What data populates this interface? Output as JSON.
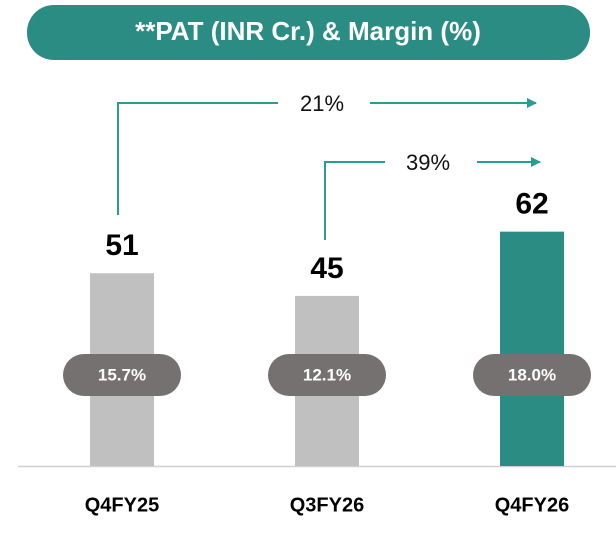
{
  "chart_data": {
    "type": "bar",
    "title": "**PAT (INR Cr.) & Margin (%)",
    "categories": [
      "Q4FY25",
      "Q3FY26",
      "Q4FY26"
    ],
    "values": [
      51,
      45,
      62
    ],
    "colors": [
      "#c0c0c0",
      "#c0c0c0",
      "#2a8c82"
    ],
    "margins": [
      15.7,
      12.1,
      18.0
    ],
    "margin_labels": [
      "15.7%",
      "12.1%",
      "18.0%"
    ],
    "annotations": [
      "21%",
      "39%"
    ]
  }
}
